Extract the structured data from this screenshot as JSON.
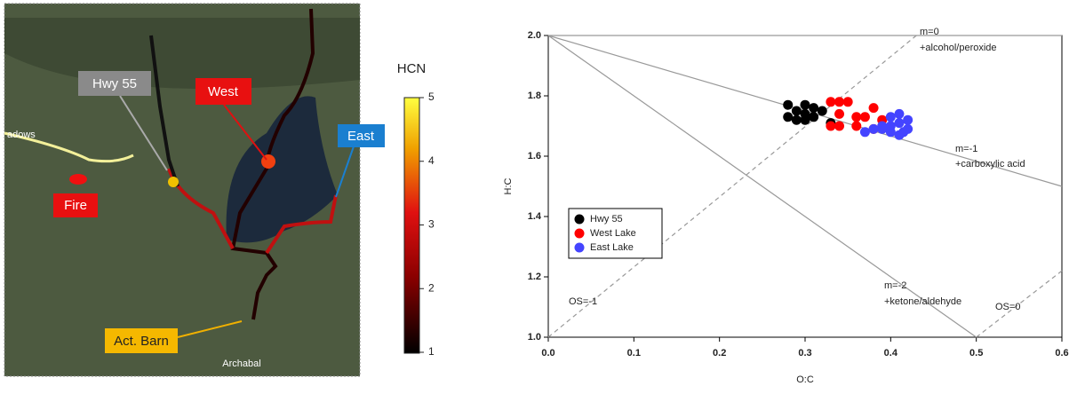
{
  "map": {
    "labels": {
      "hwy": "Hwy 55",
      "west": "West",
      "east": "East",
      "fire": "Fire",
      "barn": "Act. Barn",
      "meadows": "adows",
      "archabal": "Archabal"
    },
    "colorbar": {
      "title": "HCN",
      "lim": [
        1,
        5
      ],
      "ticks": [
        1,
        2,
        3,
        4,
        5
      ]
    }
  },
  "chart_data": {
    "type": "scatter",
    "xlabel": "O:C",
    "ylabel": "H:C",
    "xlim": [
      0,
      0.6
    ],
    "ylim": [
      1.0,
      2.0
    ],
    "xticks": [
      {
        "value": 0,
        "label": "0.0"
      },
      0.1,
      0.2,
      0.3,
      0.4,
      0.5,
      0.6
    ],
    "yticks": [
      {
        "value": 1,
        "label": "1.0"
      },
      1.2,
      1.4,
      1.6,
      1.8,
      {
        "value": 2,
        "label": "2.0"
      }
    ],
    "legend": "lower-left",
    "series": [
      {
        "name": "Hwy 55",
        "color": "#000000",
        "x": [
          0.28,
          0.28,
          0.29,
          0.29,
          0.3,
          0.3,
          0.31,
          0.31,
          0.32,
          0.3,
          0.33
        ],
        "values": [
          1.77,
          1.73,
          1.72,
          1.75,
          1.74,
          1.77,
          1.76,
          1.73,
          1.75,
          1.72,
          1.71
        ]
      },
      {
        "name": "West Lake",
        "color": "#ff0000",
        "x": [
          0.33,
          0.34,
          0.35,
          0.34,
          0.33,
          0.34,
          0.36,
          0.37,
          0.38,
          0.38,
          0.36,
          0.39
        ],
        "values": [
          1.78,
          1.78,
          1.78,
          1.74,
          1.7,
          1.7,
          1.73,
          1.73,
          1.76,
          1.69,
          1.7,
          1.72
        ]
      },
      {
        "name": "East Lake",
        "color": "#4444ff",
        "x": [
          0.37,
          0.39,
          0.4,
          0.4,
          0.41,
          0.41,
          0.42,
          0.4,
          0.41,
          0.42,
          0.39,
          0.38,
          0.415
        ],
        "values": [
          1.68,
          1.69,
          1.7,
          1.73,
          1.74,
          1.71,
          1.72,
          1.68,
          1.67,
          1.69,
          1.7,
          1.69,
          1.68
        ]
      }
    ],
    "reference_lines": [
      {
        "x": [
          0,
          0.6
        ],
        "y": [
          2,
          2
        ],
        "dashed": false
      },
      {
        "x": [
          0,
          0.6
        ],
        "y": [
          2,
          1.5
        ],
        "dashed": false
      },
      {
        "x": [
          0,
          0.5
        ],
        "y": [
          2,
          1
        ],
        "dashed": false
      },
      {
        "x": [
          0,
          0.43
        ],
        "y": [
          1,
          2
        ],
        "dashed": true
      },
      {
        "x": [
          0.5,
          0.6
        ],
        "y": [
          1,
          1.22
        ],
        "dashed": true
      }
    ],
    "annotations": [
      "m=0",
      "+alcohol/peroxide",
      "m=-1",
      "+carboxylic acid",
      "m=-2",
      "+ketone/aldehyde",
      "OS=-1",
      "OS=0"
    ]
  }
}
